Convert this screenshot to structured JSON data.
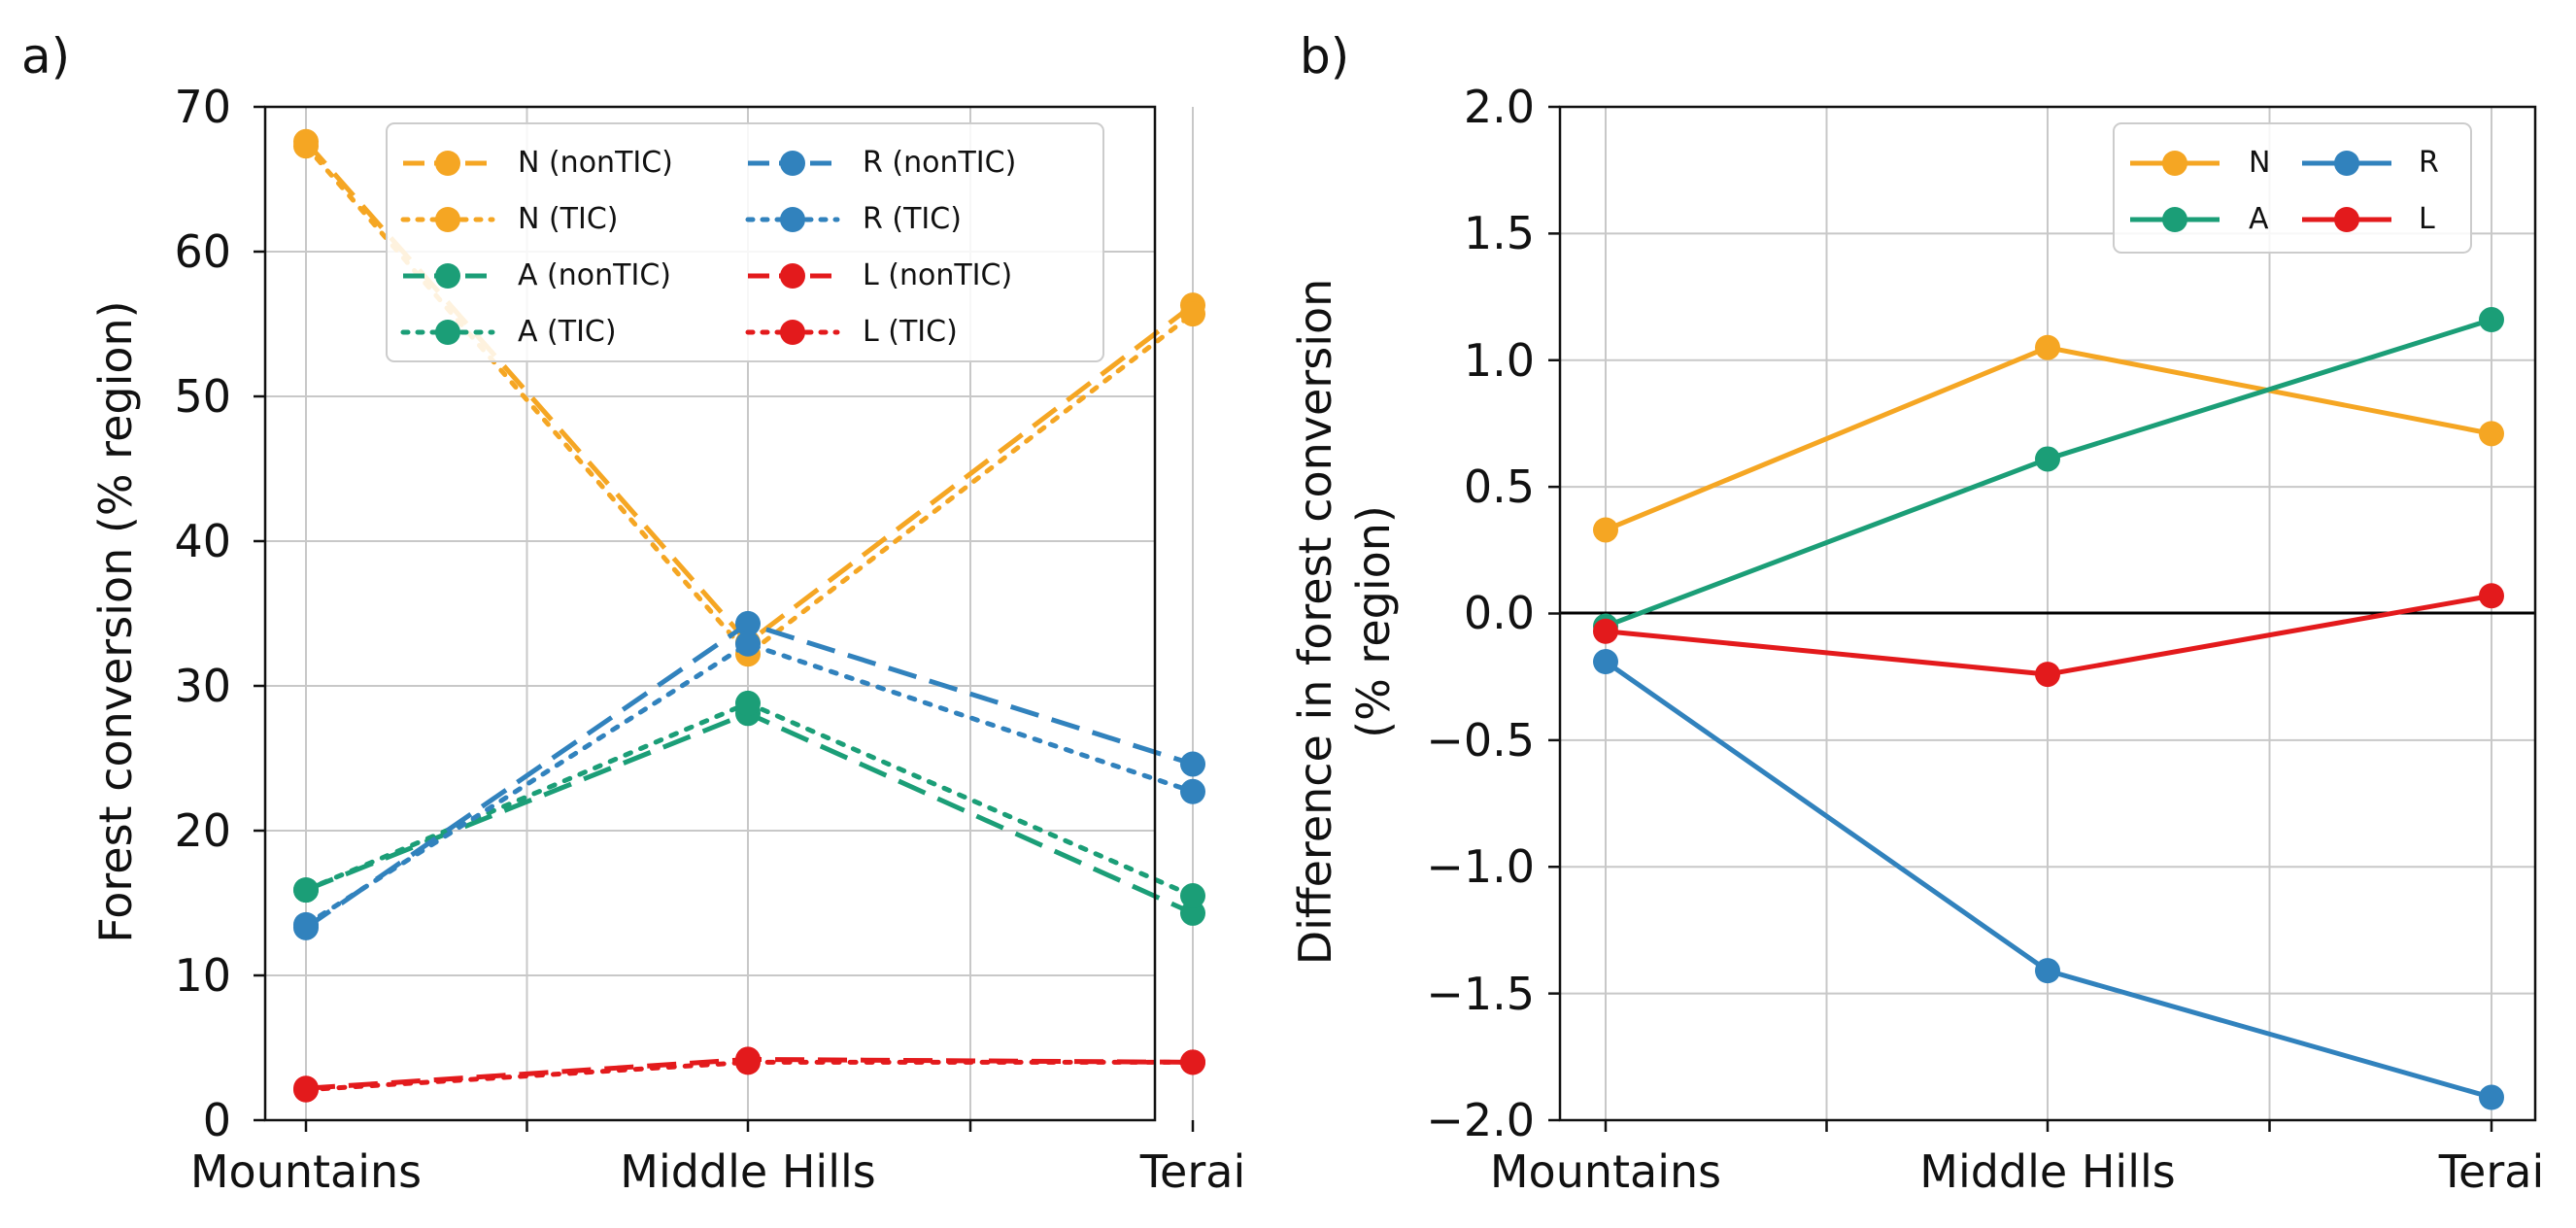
{
  "chart_data": [
    {
      "type": "line",
      "panel_label": "a)",
      "categories": [
        "Mountains",
        "Middle Hills",
        "Terai"
      ],
      "xlabel": "",
      "ylabel": "Forest conversion (% region)",
      "ylim": [
        0,
        70
      ],
      "yticks": [
        "0",
        "10",
        "20",
        "30",
        "40",
        "50",
        "60",
        "70"
      ],
      "grid": true,
      "legend": "top-right",
      "series": [
        {
          "name": "N (nonTIC)",
          "values": [
            67.6,
            33.0,
            56.3
          ],
          "color": "#f5a623",
          "style": "dashed"
        },
        {
          "name": "N (TIC)",
          "values": [
            67.3,
            32.2,
            55.7
          ],
          "color": "#f5a623",
          "style": "dotted"
        },
        {
          "name": "A (nonTIC)",
          "values": [
            15.9,
            28.1,
            14.3
          ],
          "color": "#1b9e77",
          "style": "dashed"
        },
        {
          "name": "A (TIC)",
          "values": [
            15.9,
            28.8,
            15.5
          ],
          "color": "#1b9e77",
          "style": "dotted"
        },
        {
          "name": "R (nonTIC)",
          "values": [
            13.3,
            34.3,
            24.6
          ],
          "color": "#3182bd",
          "style": "dashed"
        },
        {
          "name": "R (TIC)",
          "values": [
            13.5,
            32.9,
            22.7
          ],
          "color": "#3182bd",
          "style": "dotted"
        },
        {
          "name": "L (nonTIC)",
          "values": [
            2.2,
            4.2,
            4.0
          ],
          "color": "#e31a1c",
          "style": "dashed"
        },
        {
          "name": "L (TIC)",
          "values": [
            2.1,
            4.0,
            4.0
          ],
          "color": "#e31a1c",
          "style": "dotted"
        }
      ]
    },
    {
      "type": "line",
      "panel_label": "b)",
      "categories": [
        "Mountains",
        "Middle Hills",
        "Terai"
      ],
      "xlabel": "",
      "ylabel": "Difference in forest conversion",
      "ylabel2": "(% region)",
      "ylim": [
        -2.0,
        2.0
      ],
      "yticks": [
        "−2.0",
        "−1.5",
        "−1.0",
        "−0.5",
        "0.0",
        "0.5",
        "1.0",
        "1.5",
        "2.0"
      ],
      "grid": true,
      "zero_line": true,
      "legend": "top-right",
      "series": [
        {
          "name": "N",
          "values": [
            0.33,
            1.05,
            0.71
          ],
          "color": "#f5a623",
          "style": "solid"
        },
        {
          "name": "A",
          "values": [
            -0.05,
            0.61,
            1.16
          ],
          "color": "#1b9e77",
          "style": "solid"
        },
        {
          "name": "R",
          "values": [
            -0.19,
            -1.41,
            -1.91
          ],
          "color": "#3182bd",
          "style": "solid"
        },
        {
          "name": "L",
          "values": [
            -0.07,
            -0.24,
            0.07
          ],
          "color": "#e31a1c",
          "style": "solid"
        }
      ]
    }
  ]
}
